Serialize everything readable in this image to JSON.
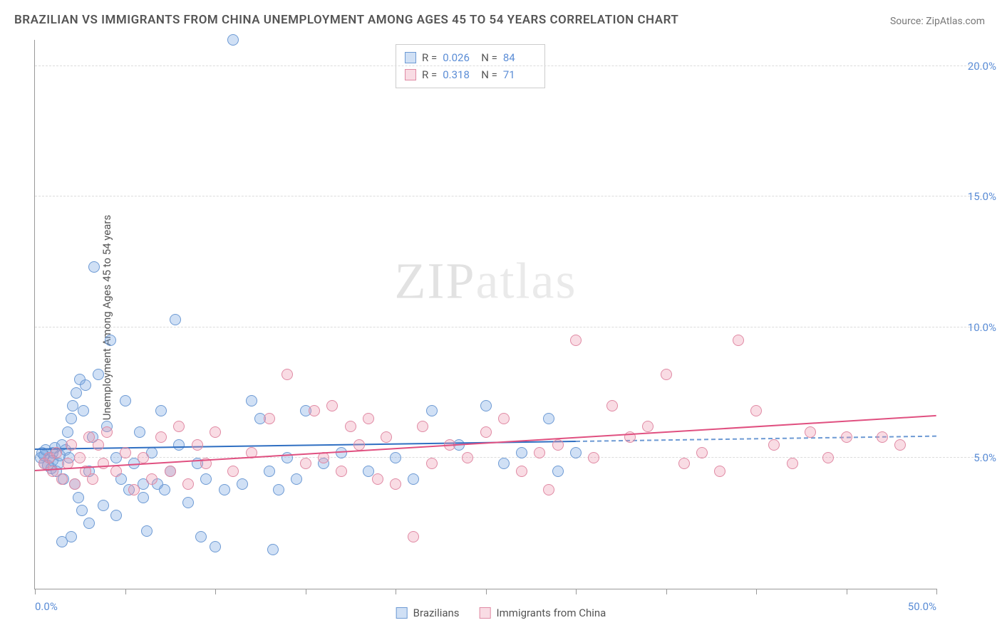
{
  "title": "BRAZILIAN VS IMMIGRANTS FROM CHINA UNEMPLOYMENT AMONG AGES 45 TO 54 YEARS CORRELATION CHART",
  "source": "Source: ZipAtlas.com",
  "ylabel": "Unemployment Among Ages 45 to 54 years",
  "watermark_a": "ZIP",
  "watermark_b": "atlas",
  "chart": {
    "type": "scatter",
    "xlim": [
      0,
      50
    ],
    "ylim": [
      0,
      21
    ],
    "x_ticks": [
      0,
      5,
      10,
      15,
      20,
      25,
      30,
      35,
      40,
      45,
      50
    ],
    "x_tick_labels": {
      "0": "0.0%",
      "50": "50.0%"
    },
    "y_ticks": [
      5,
      10,
      15,
      20
    ],
    "y_tick_labels": {
      "5": "5.0%",
      "10": "10.0%",
      "15": "15.0%",
      "20": "20.0%"
    },
    "background_color": "#ffffff",
    "grid_color": "#dcdcdc",
    "marker_radius": 8,
    "marker_stroke_width": 1.5,
    "series": [
      {
        "key": "brazilians",
        "label": "Brazilians",
        "fill": "rgba(120,165,225,0.35)",
        "stroke": "#6d9ad4",
        "line_color": "#2f6fc2",
        "line_dash_color": "#6d9ad4",
        "R_label": "R =",
        "R": "0.026",
        "N_label": "N =",
        "N": "84",
        "trend": {
          "x1": 0,
          "y1": 5.3,
          "x2": 30,
          "y2": 5.6
        },
        "trend_dash": {
          "x1": 30,
          "y1": 5.6,
          "x2": 50,
          "y2": 5.8
        },
        "points": [
          [
            0.3,
            5.0
          ],
          [
            0.4,
            5.2
          ],
          [
            0.5,
            4.8
          ],
          [
            0.5,
            5.1
          ],
          [
            0.6,
            5.3
          ],
          [
            0.7,
            4.7
          ],
          [
            0.8,
            5.0
          ],
          [
            0.9,
            4.6
          ],
          [
            1.0,
            5.2
          ],
          [
            1.0,
            4.9
          ],
          [
            1.1,
            5.4
          ],
          [
            1.2,
            4.5
          ],
          [
            1.3,
            4.8
          ],
          [
            1.4,
            5.1
          ],
          [
            1.5,
            5.5
          ],
          [
            1.6,
            4.2
          ],
          [
            1.7,
            5.3
          ],
          [
            1.8,
            6.0
          ],
          [
            1.9,
            5.0
          ],
          [
            2.0,
            6.5
          ],
          [
            2.1,
            7.0
          ],
          [
            2.2,
            4.0
          ],
          [
            2.3,
            7.5
          ],
          [
            2.4,
            3.5
          ],
          [
            2.5,
            8.0
          ],
          [
            2.6,
            3.0
          ],
          [
            2.7,
            6.8
          ],
          [
            2.8,
            7.8
          ],
          [
            3.0,
            4.5
          ],
          [
            3.2,
            5.8
          ],
          [
            3.3,
            12.3
          ],
          [
            3.5,
            8.2
          ],
          [
            3.8,
            3.2
          ],
          [
            4.0,
            6.2
          ],
          [
            4.2,
            9.5
          ],
          [
            4.5,
            5.0
          ],
          [
            4.8,
            4.2
          ],
          [
            5.0,
            7.2
          ],
          [
            5.2,
            3.8
          ],
          [
            5.5,
            4.8
          ],
          [
            5.8,
            6.0
          ],
          [
            6.0,
            3.5
          ],
          [
            6.2,
            2.2
          ],
          [
            6.5,
            5.2
          ],
          [
            6.8,
            4.0
          ],
          [
            7.0,
            6.8
          ],
          [
            7.2,
            3.8
          ],
          [
            7.5,
            4.5
          ],
          [
            7.8,
            10.3
          ],
          [
            8.0,
            5.5
          ],
          [
            8.5,
            3.3
          ],
          [
            9.0,
            4.8
          ],
          [
            9.2,
            2.0
          ],
          [
            9.5,
            4.2
          ],
          [
            10.0,
            1.6
          ],
          [
            10.5,
            3.8
          ],
          [
            11.0,
            21.0
          ],
          [
            11.5,
            4.0
          ],
          [
            12.0,
            7.2
          ],
          [
            12.5,
            6.5
          ],
          [
            13.0,
            4.5
          ],
          [
            13.2,
            1.5
          ],
          [
            13.5,
            3.8
          ],
          [
            14.0,
            5.0
          ],
          [
            14.5,
            4.2
          ],
          [
            15.0,
            6.8
          ],
          [
            16.0,
            4.8
          ],
          [
            17.0,
            5.2
          ],
          [
            18.5,
            4.5
          ],
          [
            20.0,
            5.0
          ],
          [
            21.0,
            4.2
          ],
          [
            22.0,
            6.8
          ],
          [
            23.5,
            5.5
          ],
          [
            25.0,
            7.0
          ],
          [
            26.0,
            4.8
          ],
          [
            27.0,
            5.2
          ],
          [
            28.5,
            6.5
          ],
          [
            29.0,
            4.5
          ],
          [
            30.0,
            5.2
          ],
          [
            2.0,
            2.0
          ],
          [
            3.0,
            2.5
          ],
          [
            4.5,
            2.8
          ],
          [
            1.5,
            1.8
          ],
          [
            6.0,
            4.0
          ]
        ]
      },
      {
        "key": "china",
        "label": "Immigrants from China",
        "fill": "rgba(235,145,170,0.32)",
        "stroke": "#e08aa4",
        "line_color": "#e05080",
        "R_label": "R =",
        "R": "0.318",
        "N_label": "N =",
        "N": "71",
        "trend": {
          "x1": 0,
          "y1": 4.5,
          "x2": 50,
          "y2": 6.6
        },
        "points": [
          [
            0.5,
            4.8
          ],
          [
            0.8,
            5.0
          ],
          [
            1.0,
            4.5
          ],
          [
            1.2,
            5.2
          ],
          [
            1.5,
            4.2
          ],
          [
            1.8,
            4.8
          ],
          [
            2.0,
            5.5
          ],
          [
            2.2,
            4.0
          ],
          [
            2.5,
            5.0
          ],
          [
            2.8,
            4.5
          ],
          [
            3.0,
            5.8
          ],
          [
            3.2,
            4.2
          ],
          [
            3.5,
            5.5
          ],
          [
            3.8,
            4.8
          ],
          [
            4.0,
            6.0
          ],
          [
            4.5,
            4.5
          ],
          [
            5.0,
            5.2
          ],
          [
            5.5,
            3.8
          ],
          [
            6.0,
            5.0
          ],
          [
            6.5,
            4.2
          ],
          [
            7.0,
            5.8
          ],
          [
            7.5,
            4.5
          ],
          [
            8.0,
            6.2
          ],
          [
            8.5,
            4.0
          ],
          [
            9.0,
            5.5
          ],
          [
            9.5,
            4.8
          ],
          [
            10.0,
            6.0
          ],
          [
            11.0,
            4.5
          ],
          [
            12.0,
            5.2
          ],
          [
            13.0,
            6.5
          ],
          [
            14.0,
            8.2
          ],
          [
            15.0,
            4.8
          ],
          [
            15.5,
            6.8
          ],
          [
            16.0,
            5.0
          ],
          [
            16.5,
            7.0
          ],
          [
            17.0,
            4.5
          ],
          [
            17.5,
            6.2
          ],
          [
            18.0,
            5.5
          ],
          [
            18.5,
            6.5
          ],
          [
            19.0,
            4.2
          ],
          [
            19.5,
            5.8
          ],
          [
            20.0,
            4.0
          ],
          [
            21.0,
            2.0
          ],
          [
            21.5,
            6.2
          ],
          [
            22.0,
            4.8
          ],
          [
            23.0,
            5.5
          ],
          [
            24.0,
            5.0
          ],
          [
            25.0,
            6.0
          ],
          [
            26.0,
            6.5
          ],
          [
            27.0,
            4.5
          ],
          [
            28.0,
            5.2
          ],
          [
            29.0,
            5.5
          ],
          [
            30.0,
            9.5
          ],
          [
            31.0,
            5.0
          ],
          [
            32.0,
            7.0
          ],
          [
            33.0,
            5.8
          ],
          [
            34.0,
            6.2
          ],
          [
            35.0,
            8.2
          ],
          [
            36.0,
            4.8
          ],
          [
            37.0,
            5.2
          ],
          [
            38.0,
            4.5
          ],
          [
            39.0,
            9.5
          ],
          [
            40.0,
            6.8
          ],
          [
            41.0,
            5.5
          ],
          [
            42.0,
            4.8
          ],
          [
            43.0,
            6.0
          ],
          [
            44.0,
            5.0
          ],
          [
            45.0,
            5.8
          ],
          [
            47.0,
            5.8
          ],
          [
            48.0,
            5.5
          ],
          [
            28.5,
            3.8
          ]
        ]
      }
    ]
  },
  "legend": {
    "items": [
      {
        "label": "Brazilians"
      },
      {
        "label": "Immigrants from China"
      }
    ]
  }
}
